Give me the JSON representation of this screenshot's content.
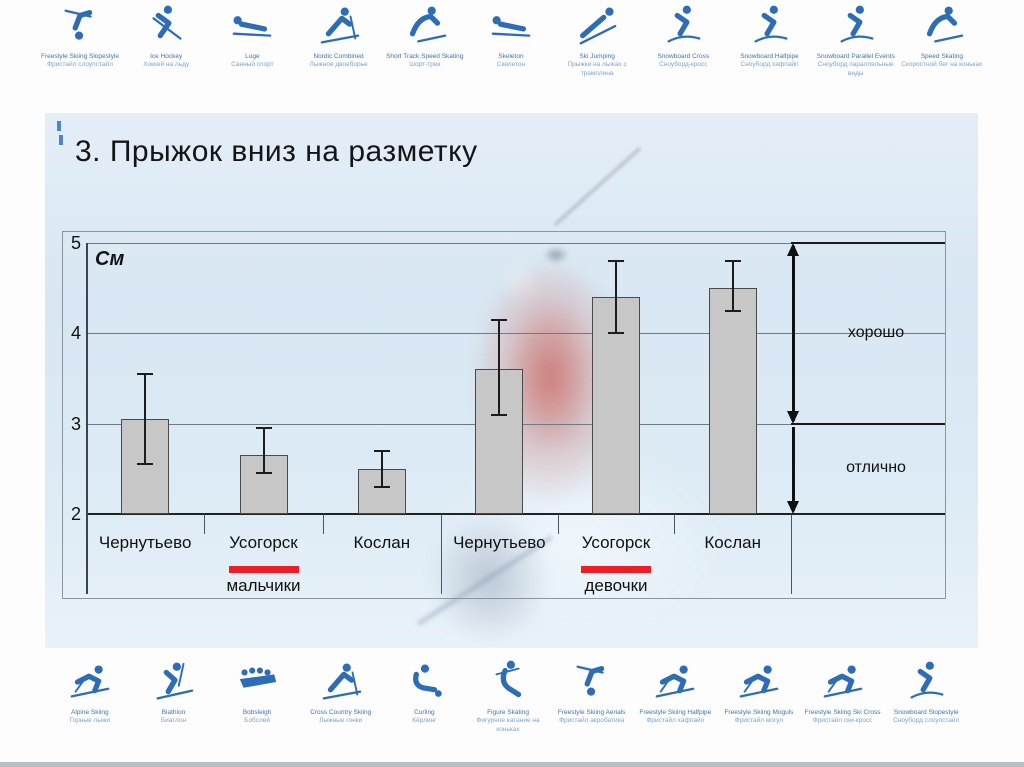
{
  "slide": {
    "title": "3. Прыжок вниз на разметку"
  },
  "chart_data": {
    "type": "bar",
    "title": "3. Прыжок вниз на разметку",
    "ylabel": "См",
    "xlabel": "",
    "ylim": [
      2,
      5
    ],
    "yticks": [
      2,
      3,
      4,
      5
    ],
    "grid": true,
    "legend_position": "none",
    "bar_color": "#c7c7c7",
    "bar_border_color": "#4a4a4a",
    "group_underline_color": "#ee1c24",
    "groups": [
      {
        "label": "мальчики",
        "categories": [
          "Чернутьево",
          "Усогорск",
          "Кослан"
        ],
        "values": [
          3.05,
          2.65,
          2.5
        ],
        "error_low": [
          2.55,
          2.45,
          2.3
        ],
        "error_high": [
          3.55,
          2.95,
          2.7
        ]
      },
      {
        "label": "девочки",
        "categories": [
          "Чернутьево",
          "Усогорск",
          "Кослан"
        ],
        "values": [
          3.6,
          4.4,
          4.5
        ],
        "error_low": [
          3.1,
          4.0,
          4.25
        ],
        "error_high": [
          4.15,
          4.8,
          4.8
        ]
      }
    ],
    "annotations": [
      {
        "label": "хорошо",
        "from": 3,
        "to": 5,
        "double_headed": true
      },
      {
        "label": "отлично",
        "from": 2,
        "to": 3,
        "double_headed": false
      }
    ]
  },
  "top_icons": [
    {
      "name": "freestyle-skiing-slopestyle-icon",
      "en": "Freestyle Skiing Slopestyle",
      "ru": "Фристайл слоупстайл"
    },
    {
      "name": "ice-hockey-icon",
      "en": "Ice Hockey",
      "ru": "Хоккей на льду"
    },
    {
      "name": "luge-icon",
      "en": "Luge",
      "ru": "Санный спорт"
    },
    {
      "name": "nordic-combined-icon",
      "en": "Nordic Combined",
      "ru": "Лыжное двоеборье"
    },
    {
      "name": "short-track-speed-skating-icon",
      "en": "Short Track Speed Skating",
      "ru": "Шорт-трек"
    },
    {
      "name": "skeleton-icon",
      "en": "Skeleton",
      "ru": "Скелетон"
    },
    {
      "name": "ski-jumping-icon",
      "en": "Ski Jumping",
      "ru": "Прыжки на лыжах с трамплина"
    },
    {
      "name": "snowboard-cross-icon",
      "en": "Snowboard Cross",
      "ru": "Сноуборд-кросс"
    },
    {
      "name": "snowboard-halfpipe-icon",
      "en": "Snowboard Halfpipe",
      "ru": "Сноуборд хафпайп"
    },
    {
      "name": "snowboard-parallel-events-icon",
      "en": "Snowboard Parallel Events",
      "ru": "Сноуборд параллельные виды"
    },
    {
      "name": "speed-skating-icon",
      "en": "Speed Skating",
      "ru": "Скоростной бег на коньках"
    }
  ],
  "bottom_icons": [
    {
      "name": "alpine-skiing-icon",
      "en": "Alpine Skiing",
      "ru": "Горные лыжи"
    },
    {
      "name": "biathlon-icon",
      "en": "Biathlon",
      "ru": "Биатлон"
    },
    {
      "name": "bobsleigh-icon",
      "en": "Bobsleigh",
      "ru": "Бобслей"
    },
    {
      "name": "cross-country-skiing-icon",
      "en": "Cross Country Skiing",
      "ru": "Лыжные гонки"
    },
    {
      "name": "curling-icon",
      "en": "Curling",
      "ru": "Кёрлинг"
    },
    {
      "name": "figure-skating-icon",
      "en": "Figure Skating",
      "ru": "Фигурное катание на коньках"
    },
    {
      "name": "freestyle-skiing-aerials-icon",
      "en": "Freestyle Skiing Aerials",
      "ru": "Фристайл акробатика"
    },
    {
      "name": "freestyle-skiing-halfpipe-icon",
      "en": "Freestyle Skiing Halfpipe",
      "ru": "Фристайл хафпайп"
    },
    {
      "name": "freestyle-skiing-moguls-icon",
      "en": "Freestyle Skiing Moguls",
      "ru": "Фристайл могул"
    },
    {
      "name": "freestyle-skiing-ski-cross-icon",
      "en": "Freestyle Skiing Ski Cross",
      "ru": "Фристайл ски-кросс"
    },
    {
      "name": "snowboard-slopestyle-icon",
      "en": "Snowboard Slopestyle",
      "ru": "Сноуборд слоупстайл"
    }
  ],
  "colors": {
    "icon_blue": "#2d6db5",
    "slide_bg": "#dbe7f3"
  }
}
